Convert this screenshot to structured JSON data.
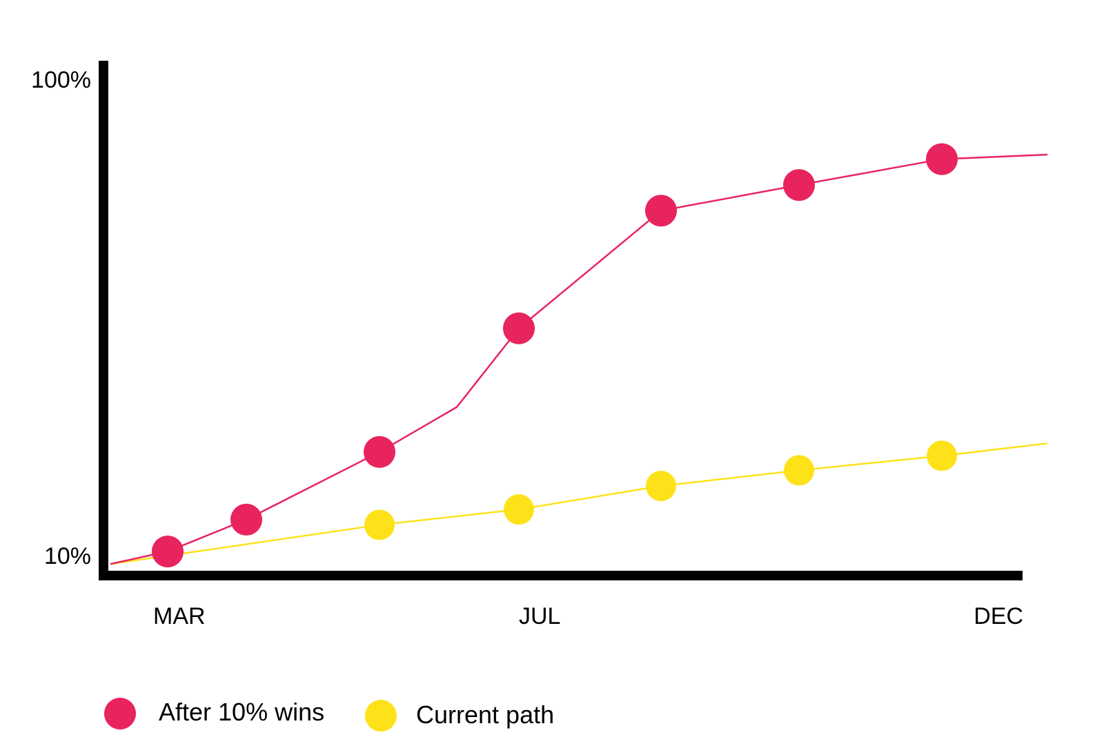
{
  "chart_data": {
    "type": "line",
    "title": "",
    "xlabel": "",
    "ylabel": "",
    "yscale": "log",
    "ylim": [
      "10%",
      "100%"
    ],
    "grid": false,
    "legend_position": "bottom-left",
    "x_tick_labels": [
      "MAR",
      "JUL",
      "DEC"
    ],
    "y_tick_labels": [
      "10%",
      "100%"
    ],
    "series": [
      {
        "name": "After 10% wins",
        "color": "#e8245f",
        "marker_positions": [
          "MAR",
          "APR",
          "MAY",
          "JUL",
          "AUG",
          "OCT",
          "NOV"
        ],
        "values": [
          10.2,
          11.9,
          16.5,
          30.0,
          53.0,
          60.0,
          68.0
        ],
        "line_values_start": 9.6,
        "line_values_end": 69.5
      },
      {
        "name": "Current path",
        "color": "#fde21a",
        "marker_positions": [
          "MAY",
          "JUL",
          "AUG",
          "OCT",
          "NOV"
        ],
        "values": [
          11.6,
          12.5,
          14.0,
          15.1,
          16.2
        ],
        "line_values_start": 9.6,
        "line_values_end": 17.2
      }
    ]
  }
}
